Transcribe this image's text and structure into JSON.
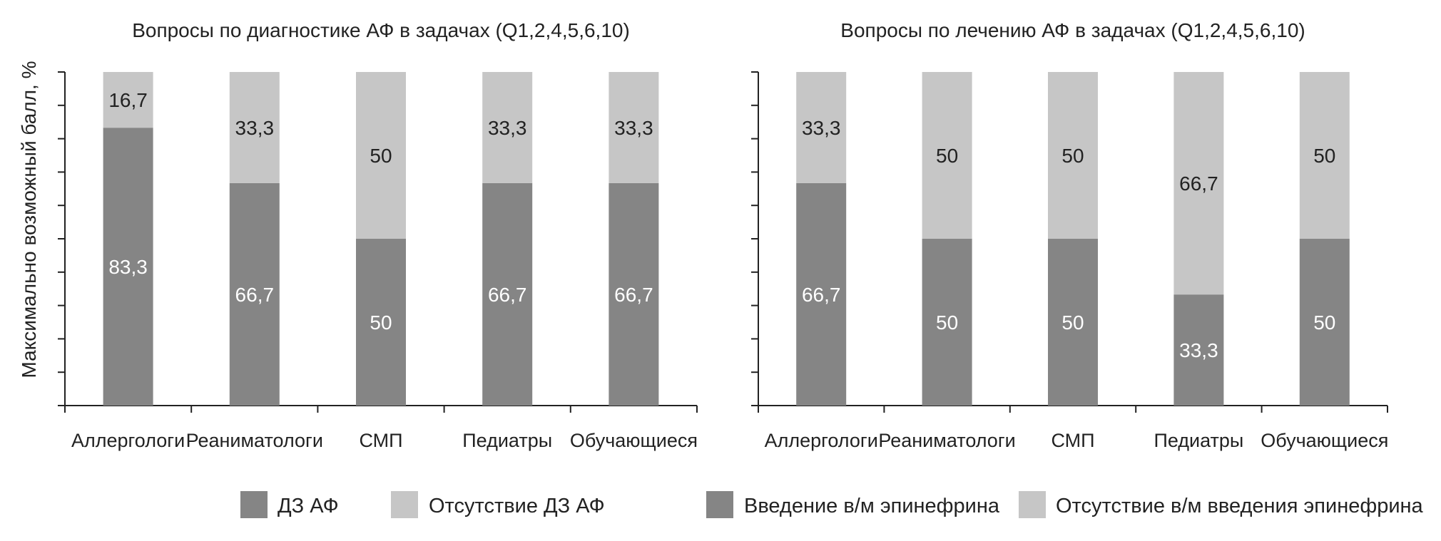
{
  "y_axis_label": "Максимально возможный балл, %",
  "colors": {
    "dark": "#858585",
    "light": "#c6c6c6",
    "axis": "#222222",
    "label_on_dark": "#ffffff",
    "label_on_light": "#222222"
  },
  "legend": [
    {
      "label": "ДЗ АФ",
      "color": "#858585"
    },
    {
      "label": "Отсутствие ДЗ АФ",
      "color": "#c6c6c6"
    },
    {
      "label": "Введение в/м эпинефрина",
      "color": "#858585"
    },
    {
      "label": "Отсутствие в/м введения эпинефрина",
      "color": "#c6c6c6"
    }
  ],
  "chart_data": [
    {
      "type": "bar",
      "stacked": true,
      "title": "Вопросы по диагностике АФ в задачах (Q1,2,4,5,6,10)",
      "ylabel": "Максимально возможный балл, %",
      "ylim": [
        0,
        100
      ],
      "categories": [
        "Аллергологи",
        "Реаниматологи",
        "СМП",
        "Педиатры",
        "Обучающиеся"
      ],
      "series": [
        {
          "name": "ДЗ АФ",
          "values": [
            83.3,
            66.7,
            50,
            66.7,
            66.7
          ],
          "labels": [
            "83,3",
            "66,7",
            "50",
            "66,7",
            "66,7"
          ],
          "color": "#858585"
        },
        {
          "name": "Отсутствие ДЗ АФ",
          "values": [
            16.7,
            33.3,
            50,
            33.3,
            33.3
          ],
          "labels": [
            "16,7",
            "33,3",
            "50",
            "33,3",
            "33,3"
          ],
          "color": "#c6c6c6"
        }
      ]
    },
    {
      "type": "bar",
      "stacked": true,
      "title": "Вопросы по лечению АФ в задачах (Q1,2,4,5,6,10)",
      "ylim": [
        0,
        100
      ],
      "categories": [
        "Аллергологи",
        "Реаниматологи",
        "СМП",
        "Педиатры",
        "Обучающиеся"
      ],
      "series": [
        {
          "name": "Введение в/м эпинефрина",
          "values": [
            66.7,
            50,
            50,
            33.3,
            50
          ],
          "labels": [
            "66,7",
            "50",
            "50",
            "33,3",
            "50"
          ],
          "color": "#858585"
        },
        {
          "name": "Отсутствие в/м введения эпинефрина",
          "values": [
            33.3,
            50,
            50,
            66.7,
            50
          ],
          "labels": [
            "33,3",
            "50",
            "50",
            "66,7",
            "50"
          ],
          "color": "#c6c6c6"
        }
      ]
    }
  ]
}
